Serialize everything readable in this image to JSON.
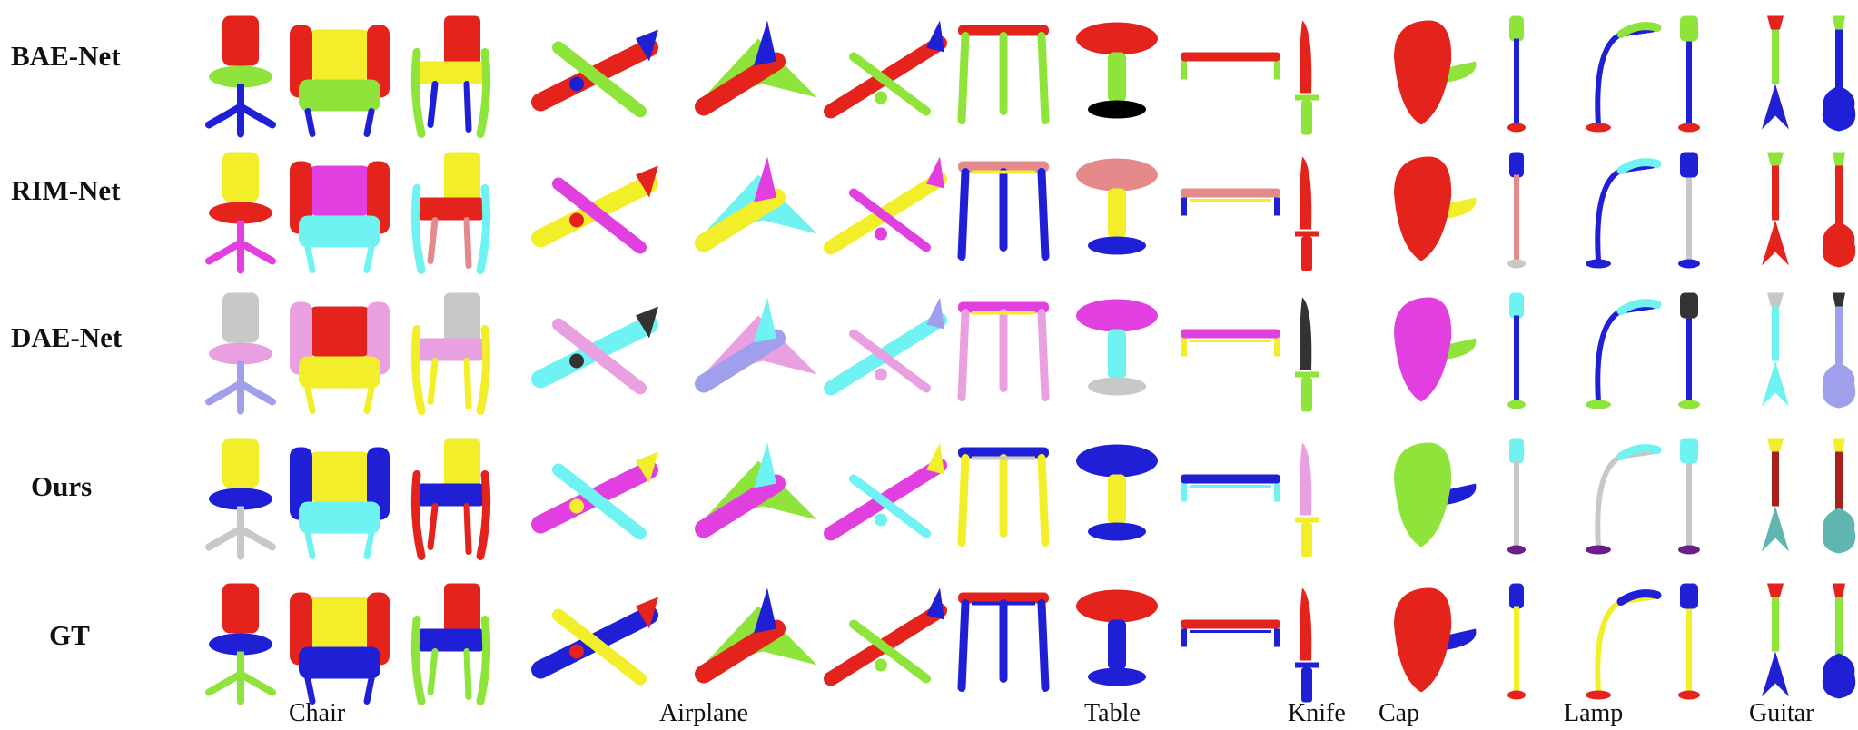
{
  "figure": {
    "rows": [
      {
        "label": "BAE-Net"
      },
      {
        "label": "RIM-Net"
      },
      {
        "label": "DAE-Net"
      },
      {
        "label": "Ours"
      },
      {
        "label": "GT"
      }
    ],
    "categories": [
      "Chair",
      "Airplane",
      "Table",
      "Knife",
      "Cap",
      "Lamp",
      "Guitar"
    ],
    "palette": {
      "red": "#e3231c",
      "green": "#8ee43a",
      "blue": "#1f1fd6",
      "yellow": "#f2ee2a",
      "magenta": "#e23fe0",
      "cyan": "#6ef2f2",
      "pink": "#e9a0e0",
      "salmon": "#e58a8a",
      "gray": "#c8c8c8",
      "lavender": "#9f9fec",
      "dark": "#333333",
      "darkred": "#a8201a",
      "purple": "#6a1e8a",
      "teal": "#5fb5b0"
    },
    "thumbnails": [
      [
        "chair-office",
        "chair-armchair",
        "chair-armrest",
        "airplane-prop",
        "airplane-jet",
        "airplane-airliner",
        "table-square",
        "table-pedestal",
        "table-bench",
        "knife",
        "cap",
        "lamp-floor",
        "lamp-arc",
        "lamp-stand",
        "guitar-flying-v",
        "guitar-classic"
      ]
    ],
    "row_colors": [
      [
        [
          "red",
          "green",
          "blue"
        ],
        [
          "yellow",
          "red",
          "green",
          "blue"
        ],
        [
          "red",
          "yellow",
          "green",
          "blue"
        ],
        [
          "red",
          "green",
          "blue"
        ],
        [
          "red",
          "green",
          "blue"
        ],
        [
          "red",
          "green",
          "blue"
        ],
        [
          "red",
          "green"
        ],
        [
          "red",
          "green"
        ],
        [
          "red",
          "green"
        ],
        [
          "red",
          "green"
        ],
        [
          "red",
          "green"
        ],
        [
          "green",
          "blue",
          "red"
        ],
        [
          "green",
          "blue",
          "red"
        ],
        [
          "green",
          "blue",
          "red"
        ],
        [
          "red",
          "green",
          "blue"
        ],
        [
          "green",
          "blue",
          "blue"
        ]
      ],
      [
        [
          "yellow",
          "red",
          "magenta"
        ],
        [
          "magenta",
          "red",
          "cyan"
        ],
        [
          "yellow",
          "red",
          "cyan",
          "salmon"
        ],
        [
          "yellow",
          "magenta",
          "red"
        ],
        [
          "yellow",
          "cyan",
          "magenta"
        ],
        [
          "yellow",
          "magenta",
          "magenta"
        ],
        [
          "salmon",
          "blue",
          "yellow"
        ],
        [
          "salmon",
          "yellow",
          "blue"
        ],
        [
          "salmon",
          "blue",
          "yellow"
        ],
        [
          "red",
          "red"
        ],
        [
          "red",
          "yellow"
        ],
        [
          "blue",
          "salmon",
          "gray"
        ],
        [
          "cyan",
          "blue",
          "blue"
        ],
        [
          "blue",
          "gray",
          "blue"
        ],
        [
          "green",
          "red",
          "red"
        ],
        [
          "green",
          "red",
          "red"
        ]
      ],
      [
        [
          "gray",
          "pink",
          "lavender"
        ],
        [
          "red",
          "pink",
          "yellow"
        ],
        [
          "gray",
          "pink",
          "yellow"
        ],
        [
          "cyan",
          "pink",
          "dark"
        ],
        [
          "lavender",
          "pink",
          "cyan"
        ],
        [
          "cyan",
          "pink",
          "lavender"
        ],
        [
          "magenta",
          "pink",
          "yellow"
        ],
        [
          "magenta",
          "cyan",
          "gray"
        ],
        [
          "magenta",
          "yellow",
          "yellow"
        ],
        [
          "dark",
          "green"
        ],
        [
          "magenta",
          "green",
          "gray"
        ],
        [
          "cyan",
          "blue",
          "green"
        ],
        [
          "cyan",
          "blue",
          "green"
        ],
        [
          "dark",
          "blue",
          "green"
        ],
        [
          "gray",
          "cyan",
          "cyan"
        ],
        [
          "dark",
          "lavender",
          "lavender"
        ]
      ],
      [
        [
          "yellow",
          "blue",
          "gray"
        ],
        [
          "yellow",
          "blue",
          "cyan"
        ],
        [
          "yellow",
          "blue",
          "red"
        ],
        [
          "magenta",
          "cyan",
          "yellow"
        ],
        [
          "magenta",
          "green",
          "cyan"
        ],
        [
          "magenta",
          "cyan",
          "yellow"
        ],
        [
          "blue",
          "yellow",
          "gray"
        ],
        [
          "blue",
          "yellow",
          "blue"
        ],
        [
          "blue",
          "cyan",
          "cyan"
        ],
        [
          "pink",
          "yellow"
        ],
        [
          "green",
          "blue"
        ],
        [
          "cyan",
          "gray",
          "purple"
        ],
        [
          "cyan",
          "gray",
          "purple"
        ],
        [
          "cyan",
          "gray",
          "purple"
        ],
        [
          "yellow",
          "darkred",
          "teal"
        ],
        [
          "yellow",
          "darkred",
          "teal"
        ]
      ],
      [
        [
          "red",
          "blue",
          "green"
        ],
        [
          "yellow",
          "red",
          "blue"
        ],
        [
          "red",
          "blue",
          "green"
        ],
        [
          "blue",
          "yellow",
          "red"
        ],
        [
          "red",
          "green",
          "blue"
        ],
        [
          "red",
          "green",
          "blue"
        ],
        [
          "red",
          "blue",
          "blue"
        ],
        [
          "red",
          "blue",
          "blue"
        ],
        [
          "red",
          "blue",
          "blue"
        ],
        [
          "red",
          "blue"
        ],
        [
          "red",
          "blue"
        ],
        [
          "blue",
          "yellow",
          "red"
        ],
        [
          "blue",
          "yellow",
          "red"
        ],
        [
          "blue",
          "yellow",
          "red"
        ],
        [
          "red",
          "green",
          "blue"
        ],
        [
          "red",
          "green",
          "blue"
        ]
      ]
    ]
  }
}
